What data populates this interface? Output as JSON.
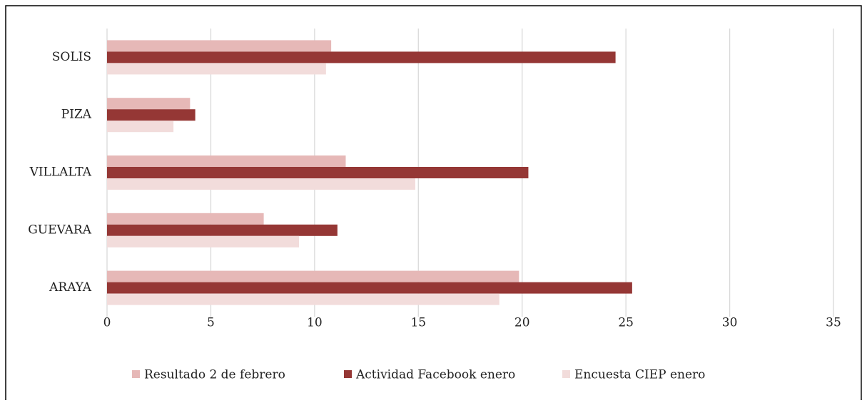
{
  "chart_data": {
    "type": "hbar",
    "categories": [
      "SOLIS",
      "PIZA",
      "VILLALTA",
      "GUEVARA",
      "ARAYA"
    ],
    "series": [
      {
        "name": "Resultado 2 de febrero",
        "color": "#e6b8b7",
        "values": [
          10.8,
          4.0,
          11.5,
          7.55,
          19.85
        ]
      },
      {
        "name": "Actividad Facebook enero",
        "color": "#953735",
        "values": [
          24.5,
          4.25,
          20.3,
          11.1,
          25.3
        ]
      },
      {
        "name": "Encuesta CIEP enero",
        "color": "#f2dcdb",
        "values": [
          10.55,
          3.2,
          14.85,
          9.25,
          18.9
        ]
      }
    ],
    "xlim": [
      0,
      35
    ],
    "xticks": [
      0,
      5,
      10,
      15,
      20,
      25,
      30,
      35
    ],
    "grid": true,
    "legend": "bottom"
  }
}
